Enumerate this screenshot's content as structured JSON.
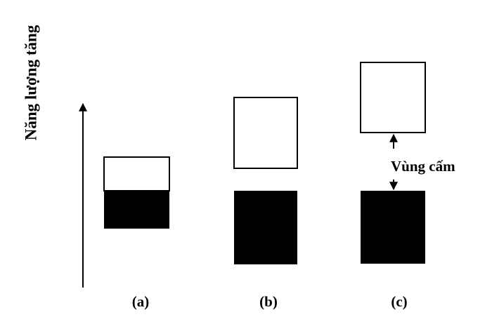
{
  "axis_label": "Năng lượng tăng",
  "gap_label": "Vùng cấm",
  "panels": [
    {
      "label": "(a)"
    },
    {
      "label": "(b)"
    },
    {
      "label": "(c)"
    }
  ]
}
